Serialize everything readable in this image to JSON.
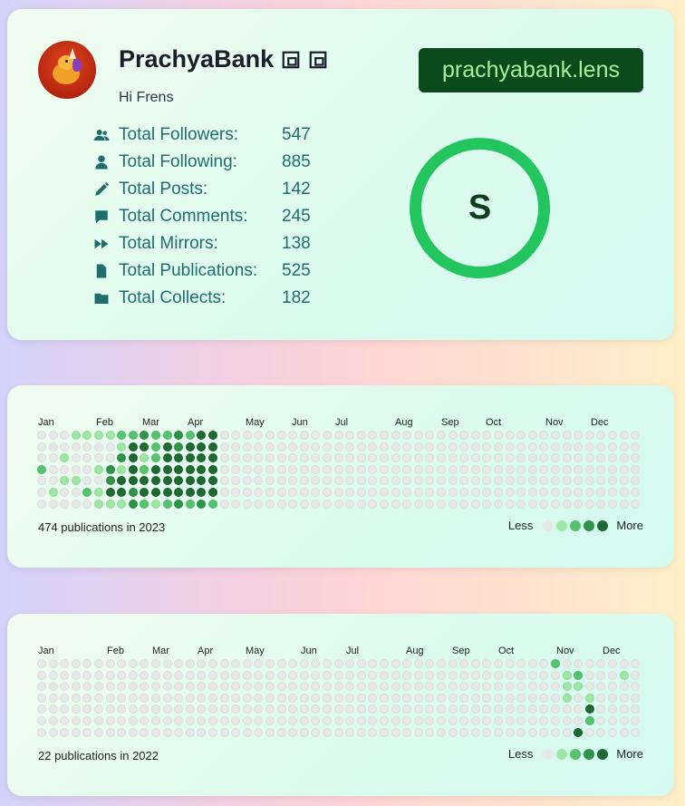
{
  "profile": {
    "name": "PrachyaBank",
    "bio": "Hi Frens",
    "handle": "prachyabank.lens",
    "score_letter": "S",
    "stats": [
      {
        "label": "Total Followers:",
        "value": "547",
        "icon": "users-icon"
      },
      {
        "label": "Total Following:",
        "value": "885",
        "icon": "user-icon"
      },
      {
        "label": "Total Posts:",
        "value": "142",
        "icon": "pencil-icon"
      },
      {
        "label": "Total Comments:",
        "value": "245",
        "icon": "comment-icon"
      },
      {
        "label": "Total Mirrors:",
        "value": "138",
        "icon": "forward-icon"
      },
      {
        "label": "Total Publications:",
        "value": "525",
        "icon": "file-icon"
      },
      {
        "label": "Total Collects:",
        "value": "182",
        "icon": "folder-icon"
      }
    ]
  },
  "colors": {
    "accent": "#22c55e",
    "handle_bg": "#0b4a1c",
    "handle_text": "#a9f09a",
    "stat_text": "#1f6e6e",
    "levels": [
      "#e6e9e8",
      "#9ee7a3",
      "#55c46d",
      "#2f9447",
      "#1e6a34"
    ]
  },
  "calendars": [
    {
      "year": "2023",
      "summary": "474 publications in 2023",
      "months": [
        "Jan",
        "Feb",
        "Mar",
        "Apr",
        "May",
        "Jun",
        "Jul",
        "Aug",
        "Sep",
        "Oct",
        "Nov",
        "Dec"
      ],
      "legend_less": "Less",
      "legend_more": "More",
      "active": [
        [
          3,
          0,
          1
        ],
        [
          4,
          0,
          1
        ],
        [
          5,
          0,
          1
        ],
        [
          6,
          0,
          1
        ],
        [
          7,
          0,
          2
        ],
        [
          8,
          0,
          2
        ],
        [
          9,
          0,
          3
        ],
        [
          10,
          0,
          2
        ],
        [
          11,
          0,
          2
        ],
        [
          12,
          0,
          3
        ],
        [
          13,
          0,
          2
        ],
        [
          14,
          0,
          4
        ],
        [
          15,
          0,
          4
        ],
        [
          7,
          1,
          1
        ],
        [
          8,
          1,
          4
        ],
        [
          9,
          1,
          4
        ],
        [
          10,
          1,
          2
        ],
        [
          11,
          1,
          4
        ],
        [
          12,
          1,
          3
        ],
        [
          13,
          1,
          4
        ],
        [
          14,
          1,
          4
        ],
        [
          15,
          1,
          4
        ],
        [
          2,
          2,
          1
        ],
        [
          7,
          2,
          3
        ],
        [
          8,
          2,
          4
        ],
        [
          9,
          2,
          1
        ],
        [
          10,
          2,
          2
        ],
        [
          11,
          2,
          4
        ],
        [
          12,
          2,
          4
        ],
        [
          13,
          2,
          4
        ],
        [
          14,
          2,
          4
        ],
        [
          15,
          2,
          4
        ],
        [
          0,
          3,
          2
        ],
        [
          5,
          3,
          1
        ],
        [
          6,
          3,
          3
        ],
        [
          7,
          3,
          1
        ],
        [
          8,
          3,
          4
        ],
        [
          9,
          3,
          2
        ],
        [
          10,
          3,
          4
        ],
        [
          11,
          3,
          4
        ],
        [
          12,
          3,
          4
        ],
        [
          13,
          3,
          4
        ],
        [
          14,
          3,
          4
        ],
        [
          15,
          3,
          4
        ],
        [
          2,
          4,
          1
        ],
        [
          3,
          4,
          1
        ],
        [
          6,
          4,
          3
        ],
        [
          7,
          4,
          4
        ],
        [
          8,
          4,
          4
        ],
        [
          9,
          4,
          4
        ],
        [
          10,
          4,
          4
        ],
        [
          11,
          4,
          4
        ],
        [
          12,
          4,
          4
        ],
        [
          13,
          4,
          4
        ],
        [
          14,
          4,
          4
        ],
        [
          15,
          4,
          4
        ],
        [
          1,
          5,
          1
        ],
        [
          4,
          5,
          2
        ],
        [
          5,
          5,
          1
        ],
        [
          6,
          5,
          4
        ],
        [
          7,
          5,
          4
        ],
        [
          8,
          5,
          3
        ],
        [
          9,
          5,
          4
        ],
        [
          10,
          5,
          4
        ],
        [
          11,
          5,
          4
        ],
        [
          12,
          5,
          4
        ],
        [
          13,
          5,
          4
        ],
        [
          14,
          5,
          4
        ],
        [
          15,
          5,
          4
        ],
        [
          5,
          6,
          1
        ],
        [
          6,
          6,
          1
        ],
        [
          7,
          6,
          1
        ],
        [
          8,
          6,
          3
        ],
        [
          9,
          6,
          2
        ],
        [
          10,
          6,
          1
        ],
        [
          11,
          6,
          2
        ],
        [
          12,
          6,
          3
        ],
        [
          13,
          6,
          2
        ],
        [
          14,
          6,
          3
        ],
        [
          15,
          6,
          2
        ]
      ]
    },
    {
      "year": "2022",
      "summary": "22 publications in 2022",
      "months": [
        "Jan",
        "Feb",
        "Mar",
        "Apr",
        "May",
        "Jun",
        "Jul",
        "Aug",
        "Sep",
        "Oct",
        "Nov",
        "Dec"
      ],
      "legend_less": "Less",
      "legend_more": "More",
      "active": [
        [
          45,
          0,
          2
        ],
        [
          46,
          1,
          1
        ],
        [
          47,
          1,
          2
        ],
        [
          51,
          1,
          1
        ],
        [
          46,
          2,
          1
        ],
        [
          47,
          2,
          1
        ],
        [
          46,
          3,
          1
        ],
        [
          48,
          3,
          1
        ],
        [
          48,
          4,
          4
        ],
        [
          48,
          5,
          2
        ],
        [
          47,
          6,
          4
        ]
      ]
    }
  ]
}
